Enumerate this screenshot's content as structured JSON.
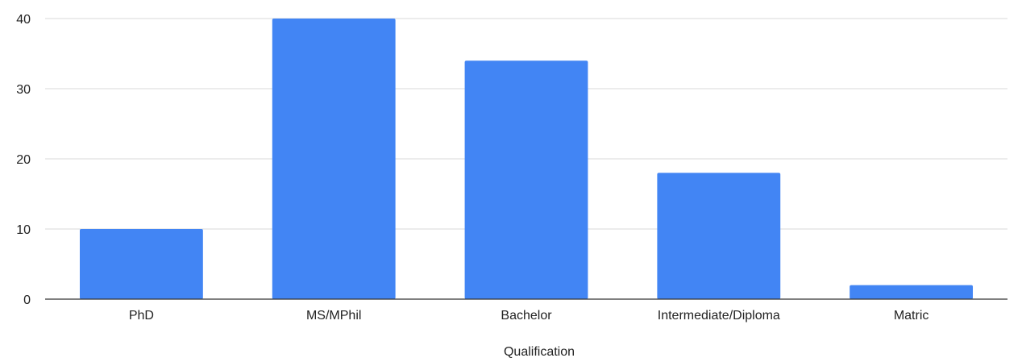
{
  "chart_data": {
    "type": "bar",
    "title": "",
    "xlabel": "Qualification",
    "ylabel": "",
    "categories": [
      "PhD",
      "MS/MPhil",
      "Bachelor",
      "Intermediate/Diploma",
      "Matric"
    ],
    "values": [
      10,
      40,
      34,
      18,
      2
    ],
    "ylim": [
      0,
      40
    ],
    "yticks": [
      0,
      10,
      20,
      30,
      40
    ],
    "grid": true,
    "legend": "none",
    "colors": {
      "bar": "#4285f4",
      "gridline": "#d9d9d9",
      "baseline": "#333333",
      "text": "#222222"
    }
  }
}
